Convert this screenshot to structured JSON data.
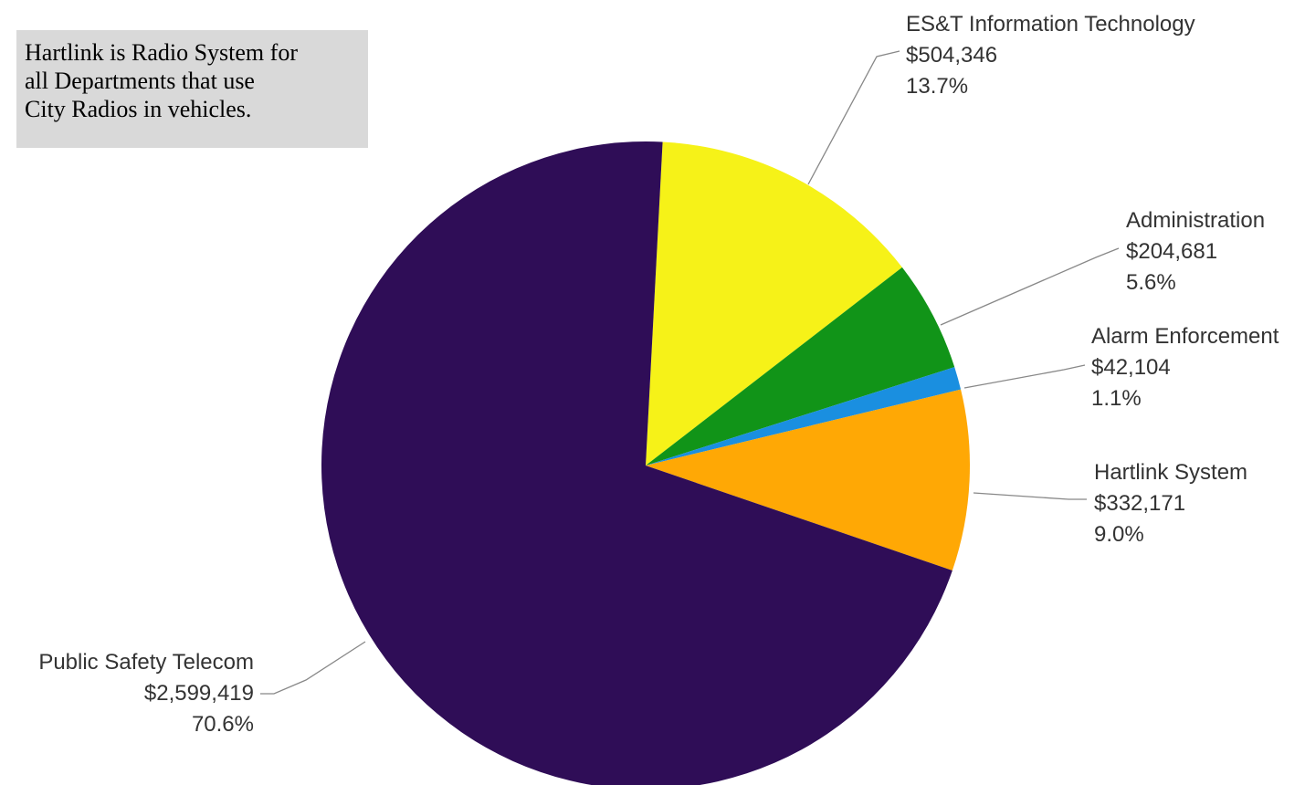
{
  "note": {
    "text": "Hartlink is Radio System for\nall Departments that use\nCity Radios in vehicles."
  },
  "chart_data": {
    "type": "pie",
    "title": "",
    "slices": [
      {
        "label": "ES&T Information Technology",
        "amount": "$504,346",
        "percent_label": "13.7%",
        "value": 504346,
        "percent": 13.7,
        "color": "#f6f218"
      },
      {
        "label": "Administration",
        "amount": "$204,681",
        "percent_label": "5.6%",
        "value": 204681,
        "percent": 5.6,
        "color": "#119418"
      },
      {
        "label": "Alarm Enforcement",
        "amount": "$42,104",
        "percent_label": "1.1%",
        "value": 42104,
        "percent": 1.1,
        "color": "#1a8fe0"
      },
      {
        "label": "Hartlink System",
        "amount": "$332,171",
        "percent_label": "9.0%",
        "value": 332171,
        "percent": 9.0,
        "color": "#ffa805"
      },
      {
        "label": "Public Safety Telecom",
        "amount": "$2,599,419",
        "percent_label": "70.6%",
        "value": 2599419,
        "percent": 70.6,
        "color": "#2f0d57"
      }
    ],
    "start_angle_deg": 3,
    "direction": "clockwise",
    "legend": "none"
  }
}
